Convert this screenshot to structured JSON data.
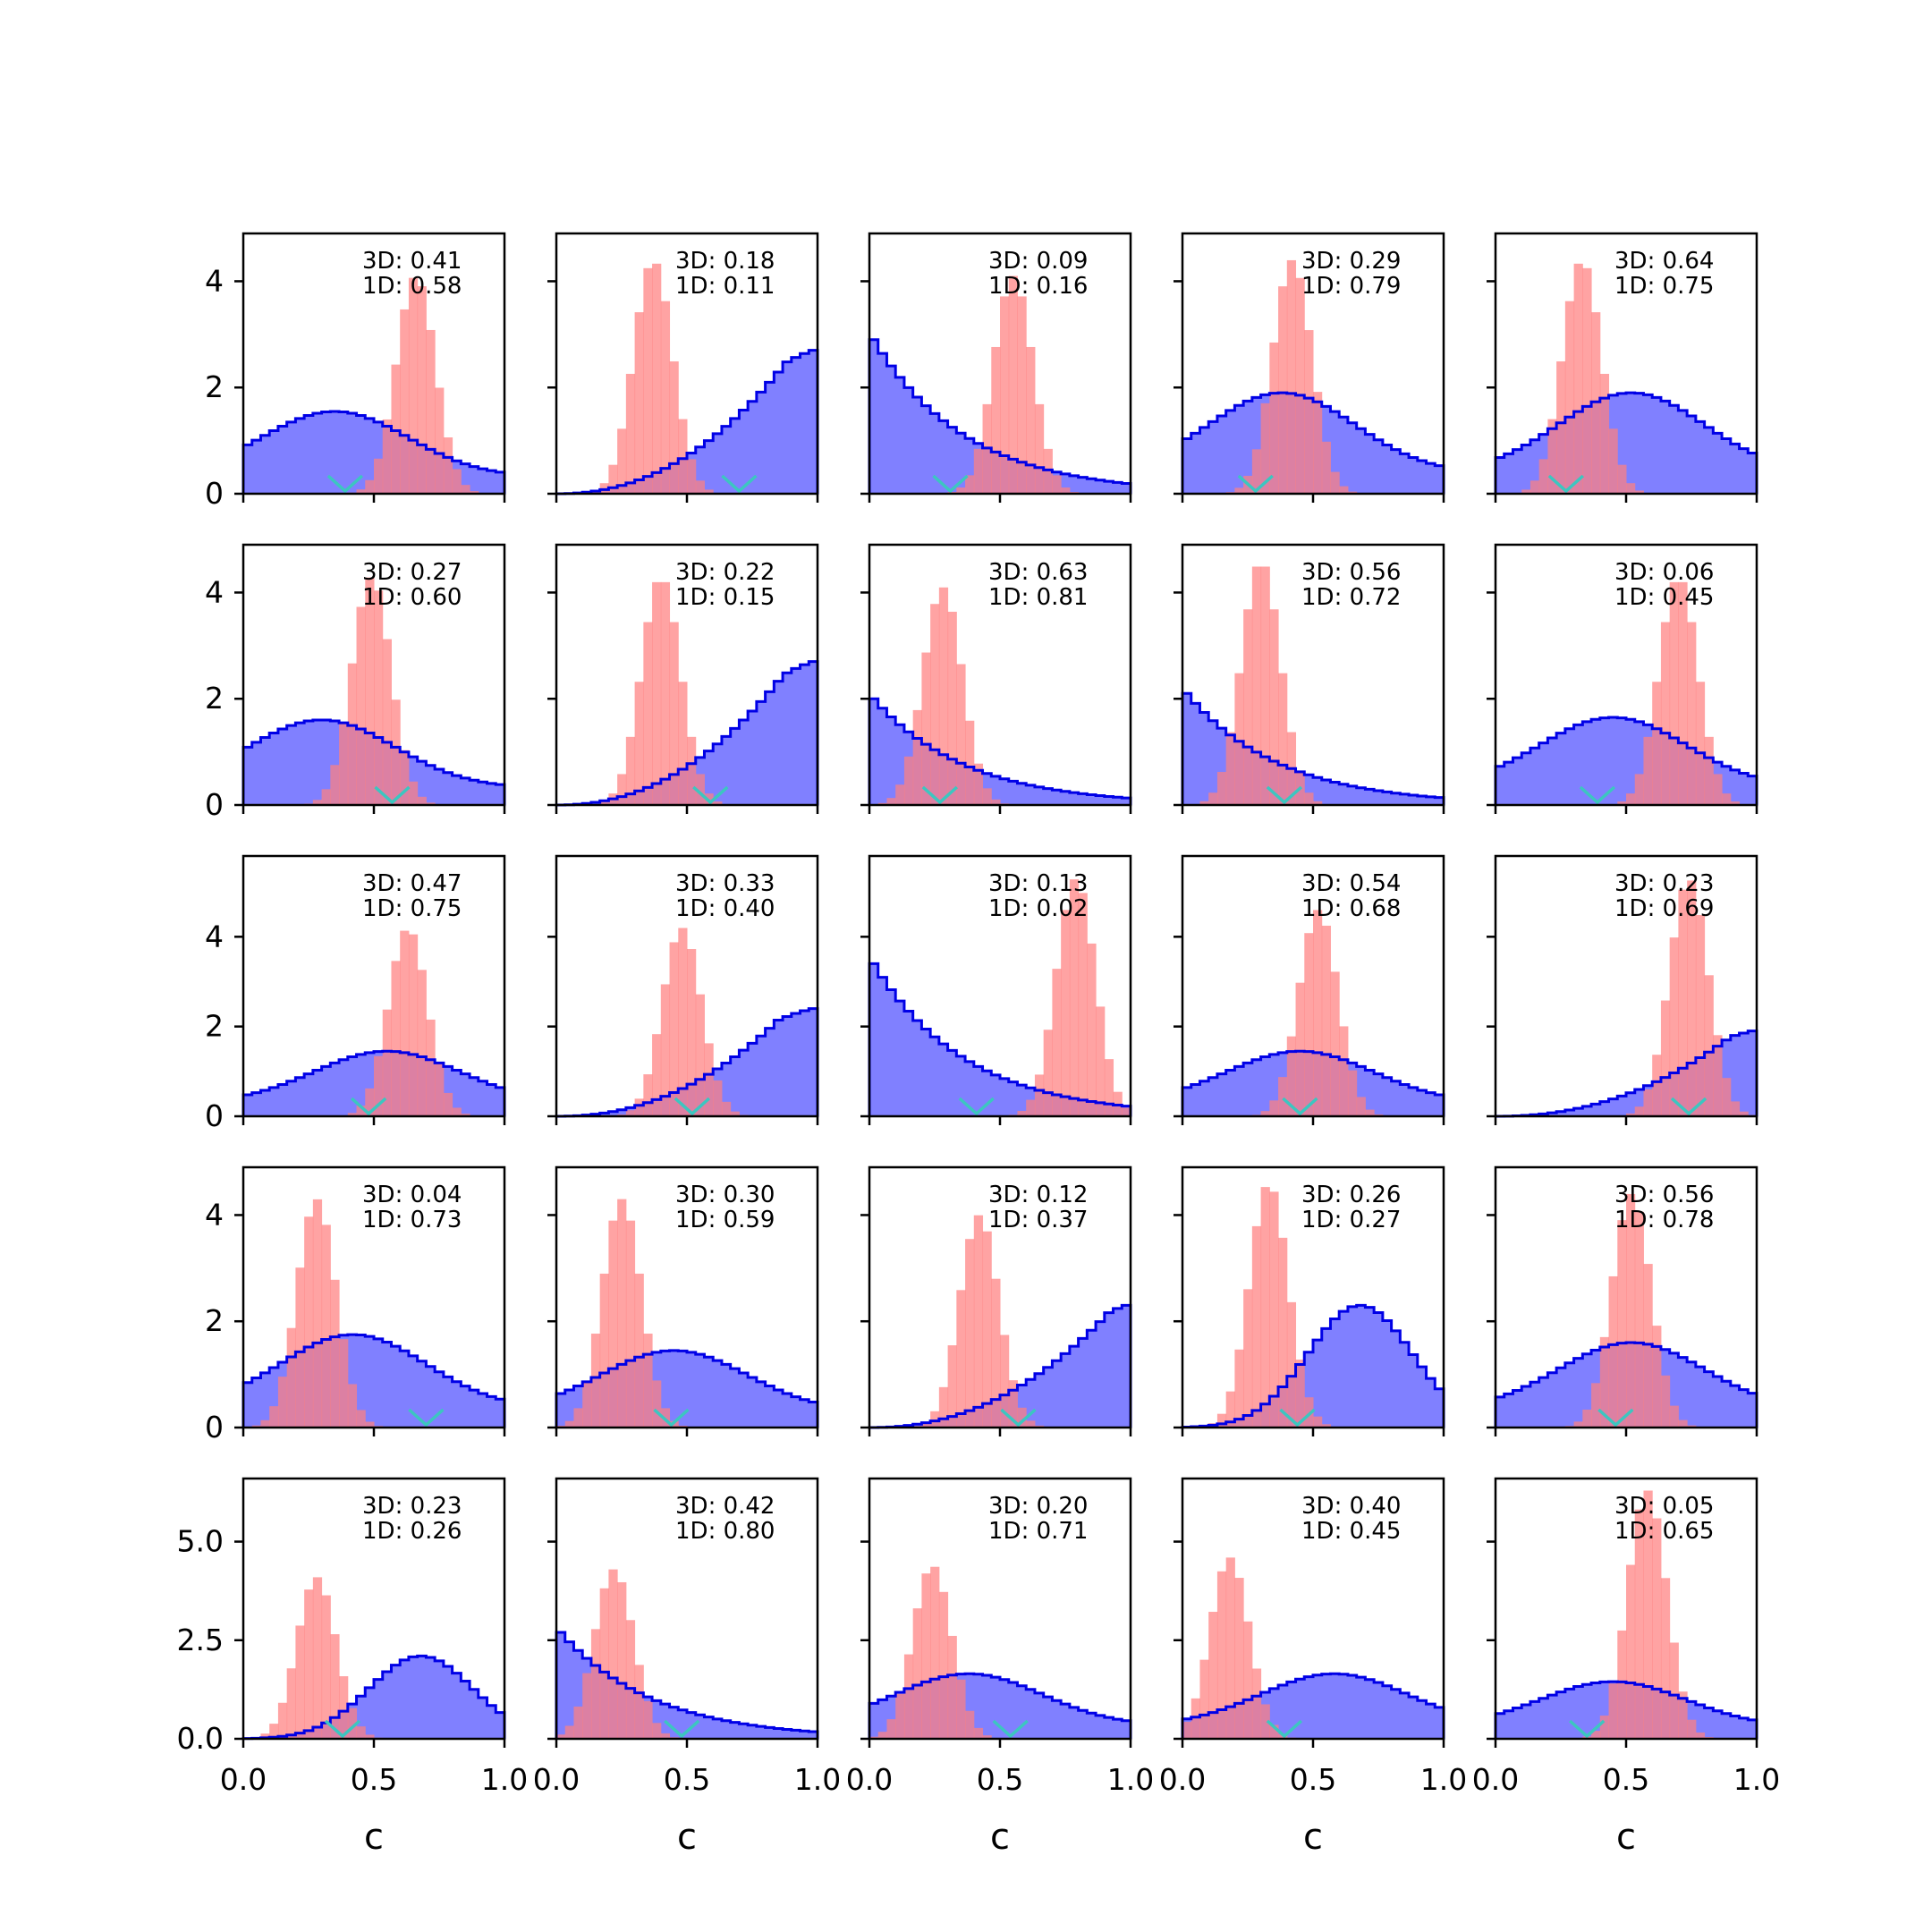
{
  "figure": {
    "grid": {
      "rows": 5,
      "cols": 5
    },
    "colors": {
      "blue_fill": "#8080ff",
      "blue_edge": "#0000e6",
      "red_fill": "#ff7f7f",
      "overlap_edge": "#800080",
      "marker": "#3cc6c0",
      "axis": "#000000"
    },
    "shared_xlabel": "c"
  },
  "chart_data": [
    {
      "type": "histogram",
      "row": 0,
      "col": 0,
      "xlim": [
        0,
        1
      ],
      "ylim": [
        0,
        4.9
      ],
      "yticks": [
        "0",
        "2",
        "4"
      ],
      "annotation": [
        "3D: 0.41",
        "1D: 0.58"
      ],
      "marker_x": 0.39,
      "blue_mode": "broad",
      "blue_center": 0.35,
      "blue_peak": 1.55,
      "red_center": 0.66,
      "red_peak": 4.1
    },
    {
      "type": "histogram",
      "row": 0,
      "col": 1,
      "xlim": [
        0,
        1
      ],
      "ylim": [
        0,
        4.9
      ],
      "yticks": [
        "0",
        "2",
        "4"
      ],
      "annotation": [
        "3D: 0.18",
        "1D: 0.11"
      ],
      "marker_x": 0.7,
      "blue_mode": "rising",
      "blue_center": 0.88,
      "blue_peak": 2.7,
      "red_center": 0.37,
      "red_peak": 4.4
    },
    {
      "type": "histogram",
      "row": 0,
      "col": 2,
      "xlim": [
        0,
        1
      ],
      "ylim": [
        0,
        4.9
      ],
      "yticks": [
        "0",
        "2",
        "4"
      ],
      "annotation": [
        "3D: 0.09",
        "1D: 0.16"
      ],
      "marker_x": 0.31,
      "blue_mode": "falling",
      "blue_center": 0.0,
      "blue_peak": 2.9,
      "red_center": 0.55,
      "red_peak": 4.1
    },
    {
      "type": "histogram",
      "row": 0,
      "col": 3,
      "xlim": [
        0,
        1
      ],
      "ylim": [
        0,
        4.9
      ],
      "yticks": [
        "0",
        "2",
        "4"
      ],
      "annotation": [
        "3D: 0.29",
        "1D: 0.79"
      ],
      "marker_x": 0.28,
      "blue_mode": "broad",
      "blue_center": 0.38,
      "blue_peak": 1.9,
      "red_center": 0.42,
      "red_peak": 4.4
    },
    {
      "type": "histogram",
      "row": 0,
      "col": 4,
      "xlim": [
        0,
        1
      ],
      "ylim": [
        0,
        4.9
      ],
      "yticks": [
        "0",
        "2",
        "4"
      ],
      "annotation": [
        "3D: 0.64",
        "1D: 0.75"
      ],
      "marker_x": 0.27,
      "blue_mode": "broad",
      "blue_center": 0.52,
      "blue_peak": 1.9,
      "red_center": 0.33,
      "red_peak": 4.4
    },
    {
      "type": "histogram",
      "row": 1,
      "col": 0,
      "xlim": [
        0,
        1
      ],
      "ylim": [
        0,
        4.9
      ],
      "yticks": [
        "0",
        "2",
        "4"
      ],
      "annotation": [
        "3D: 0.27",
        "1D: 0.60"
      ],
      "marker_x": 0.57,
      "blue_mode": "broad",
      "blue_center": 0.3,
      "blue_peak": 1.6,
      "red_center": 0.49,
      "red_peak": 4.3
    },
    {
      "type": "histogram",
      "row": 1,
      "col": 1,
      "xlim": [
        0,
        1
      ],
      "ylim": [
        0,
        4.9
      ],
      "yticks": [
        "0",
        "2",
        "4"
      ],
      "annotation": [
        "3D: 0.22",
        "1D: 0.15"
      ],
      "marker_x": 0.59,
      "blue_mode": "rising",
      "blue_center": 0.87,
      "blue_peak": 2.7,
      "red_center": 0.4,
      "red_peak": 4.3
    },
    {
      "type": "histogram",
      "row": 1,
      "col": 2,
      "xlim": [
        0,
        1
      ],
      "ylim": [
        0,
        4.9
      ],
      "yticks": [
        "0",
        "2",
        "4"
      ],
      "annotation": [
        "3D: 0.63",
        "1D: 0.81"
      ],
      "marker_x": 0.27,
      "blue_mode": "falling",
      "blue_center": 0.05,
      "blue_peak": 2.0,
      "red_center": 0.28,
      "red_peak": 4.1
    },
    {
      "type": "histogram",
      "row": 1,
      "col": 3,
      "xlim": [
        0,
        1
      ],
      "ylim": [
        0,
        4.9
      ],
      "yticks": [
        "0",
        "2",
        "4"
      ],
      "annotation": [
        "3D: 0.56",
        "1D: 0.72"
      ],
      "marker_x": 0.39,
      "blue_mode": "falling",
      "blue_center": 0.12,
      "blue_peak": 2.1,
      "red_center": 0.3,
      "red_peak": 4.6
    },
    {
      "type": "histogram",
      "row": 1,
      "col": 4,
      "xlim": [
        0,
        1
      ],
      "ylim": [
        0,
        4.9
      ],
      "yticks": [
        "0",
        "2",
        "4"
      ],
      "annotation": [
        "3D: 0.06",
        "1D: 0.45"
      ],
      "marker_x": 0.39,
      "blue_mode": "broad",
      "blue_center": 0.45,
      "blue_peak": 1.65,
      "red_center": 0.7,
      "red_peak": 4.3
    },
    {
      "type": "histogram",
      "row": 2,
      "col": 0,
      "xlim": [
        0,
        1
      ],
      "ylim": [
        0,
        5.8
      ],
      "yticks": [
        "0",
        "2",
        "4"
      ],
      "annotation": [
        "3D: 0.47",
        "1D: 0.75"
      ],
      "marker_x": 0.48,
      "blue_mode": "broad",
      "blue_center": 0.55,
      "blue_peak": 1.45,
      "red_center": 0.63,
      "red_peak": 4.2
    },
    {
      "type": "histogram",
      "row": 2,
      "col": 1,
      "xlim": [
        0,
        1
      ],
      "ylim": [
        0,
        5.8
      ],
      "yticks": [
        "0",
        "2",
        "4"
      ],
      "annotation": [
        "3D: 0.33",
        "1D: 0.40"
      ],
      "marker_x": 0.52,
      "blue_mode": "rising",
      "blue_center": 0.85,
      "blue_peak": 2.4,
      "red_center": 0.48,
      "red_peak": 4.2
    },
    {
      "type": "histogram",
      "row": 2,
      "col": 2,
      "xlim": [
        0,
        1
      ],
      "ylim": [
        0,
        5.8
      ],
      "yticks": [
        "0",
        "2",
        "4"
      ],
      "annotation": [
        "3D: 0.13",
        "1D: 0.02"
      ],
      "marker_x": 0.41,
      "blue_mode": "falling",
      "blue_center": 0.0,
      "blue_peak": 3.4,
      "red_center": 0.79,
      "red_peak": 5.3
    },
    {
      "type": "histogram",
      "row": 2,
      "col": 3,
      "xlim": [
        0,
        1
      ],
      "ylim": [
        0,
        5.8
      ],
      "yticks": [
        "0",
        "2",
        "4"
      ],
      "annotation": [
        "3D: 0.54",
        "1D: 0.68"
      ],
      "marker_x": 0.45,
      "blue_mode": "broad",
      "blue_center": 0.45,
      "blue_peak": 1.45,
      "red_center": 0.52,
      "red_peak": 4.6
    },
    {
      "type": "histogram",
      "row": 2,
      "col": 4,
      "xlim": [
        0,
        1
      ],
      "ylim": [
        0,
        5.8
      ],
      "yticks": [
        "0",
        "2",
        "4"
      ],
      "annotation": [
        "3D: 0.23",
        "1D: 0.69"
      ],
      "marker_x": 0.74,
      "blue_mode": "rising",
      "blue_center": 0.9,
      "blue_peak": 1.9,
      "red_center": 0.74,
      "red_peak": 5.3
    },
    {
      "type": "histogram",
      "row": 3,
      "col": 0,
      "xlim": [
        0,
        1
      ],
      "ylim": [
        0,
        4.9
      ],
      "yticks": [
        "0",
        "2",
        "4"
      ],
      "annotation": [
        "3D: 0.04",
        "1D: 0.73"
      ],
      "marker_x": 0.7,
      "blue_mode": "broad",
      "blue_center": 0.42,
      "blue_peak": 1.75,
      "red_center": 0.28,
      "red_peak": 4.3
    },
    {
      "type": "histogram",
      "row": 3,
      "col": 1,
      "xlim": [
        0,
        1
      ],
      "ylim": [
        0,
        4.9
      ],
      "yticks": [
        "0",
        "2",
        "4"
      ],
      "annotation": [
        "3D: 0.30",
        "1D: 0.59"
      ],
      "marker_x": 0.44,
      "blue_mode": "broad",
      "blue_center": 0.45,
      "blue_peak": 1.45,
      "red_center": 0.25,
      "red_peak": 4.3
    },
    {
      "type": "histogram",
      "row": 3,
      "col": 2,
      "xlim": [
        0,
        1
      ],
      "ylim": [
        0,
        4.9
      ],
      "yticks": [
        "0",
        "2",
        "4"
      ],
      "annotation": [
        "3D: 0.12",
        "1D: 0.37"
      ],
      "marker_x": 0.57,
      "blue_mode": "rising",
      "blue_center": 0.92,
      "blue_peak": 2.3,
      "red_center": 0.42,
      "red_peak": 4.0
    },
    {
      "type": "histogram",
      "row": 3,
      "col": 3,
      "xlim": [
        0,
        1
      ],
      "ylim": [
        0,
        4.9
      ],
      "yticks": [
        "0",
        "2",
        "4"
      ],
      "annotation": [
        "3D: 0.26",
        "1D: 0.27"
      ],
      "marker_x": 0.44,
      "blue_mode": "hump",
      "blue_center": 0.68,
      "blue_peak": 2.3,
      "red_center": 0.33,
      "red_peak": 4.6
    },
    {
      "type": "histogram",
      "row": 3,
      "col": 4,
      "xlim": [
        0,
        1
      ],
      "ylim": [
        0,
        4.9
      ],
      "yticks": [
        "0",
        "2",
        "4"
      ],
      "annotation": [
        "3D: 0.56",
        "1D: 0.78"
      ],
      "marker_x": 0.46,
      "blue_mode": "broad",
      "blue_center": 0.52,
      "blue_peak": 1.6,
      "red_center": 0.52,
      "red_peak": 4.4
    },
    {
      "type": "histogram",
      "row": 4,
      "col": 0,
      "xlim": [
        0,
        1
      ],
      "ylim": [
        0,
        6.6
      ],
      "yticks": [
        "0.0",
        "2.5",
        "5.0"
      ],
      "annotation": [
        "3D: 0.23",
        "1D: 0.26"
      ],
      "marker_x": 0.38,
      "blue_mode": "hump",
      "blue_center": 0.68,
      "blue_peak": 2.1,
      "red_center": 0.28,
      "red_peak": 4.1
    },
    {
      "type": "histogram",
      "row": 4,
      "col": 1,
      "xlim": [
        0,
        1
      ],
      "ylim": [
        0,
        6.6
      ],
      "yticks": [
        "0.0",
        "2.5",
        "5.0"
      ],
      "annotation": [
        "3D: 0.42",
        "1D: 0.80"
      ],
      "marker_x": 0.48,
      "blue_mode": "falling",
      "blue_center": 0.05,
      "blue_peak": 2.7,
      "red_center": 0.22,
      "red_peak": 4.3
    },
    {
      "type": "histogram",
      "row": 4,
      "col": 2,
      "xlim": [
        0,
        1
      ],
      "ylim": [
        0,
        6.6
      ],
      "yticks": [
        "0.0",
        "2.5",
        "5.0"
      ],
      "annotation": [
        "3D: 0.20",
        "1D: 0.71"
      ],
      "marker_x": 0.54,
      "blue_mode": "broad",
      "blue_center": 0.38,
      "blue_peak": 1.65,
      "red_center": 0.24,
      "red_peak": 4.4
    },
    {
      "type": "histogram",
      "row": 4,
      "col": 3,
      "xlim": [
        0,
        1
      ],
      "ylim": [
        0,
        6.6
      ],
      "yticks": [
        "0.0",
        "2.5",
        "5.0"
      ],
      "annotation": [
        "3D: 0.40",
        "1D: 0.45"
      ],
      "marker_x": 0.39,
      "blue_mode": "broad",
      "blue_center": 0.58,
      "blue_peak": 1.65,
      "red_center": 0.18,
      "red_peak": 4.6
    },
    {
      "type": "histogram",
      "row": 4,
      "col": 4,
      "xlim": [
        0,
        1
      ],
      "ylim": [
        0,
        6.6
      ],
      "yticks": [
        "0.0",
        "2.5",
        "5.0"
      ],
      "annotation": [
        "3D: 0.05",
        "1D: 0.65"
      ],
      "marker_x": 0.35,
      "blue_mode": "broad",
      "blue_center": 0.45,
      "blue_peak": 1.45,
      "red_center": 0.58,
      "red_peak": 6.3
    }
  ]
}
